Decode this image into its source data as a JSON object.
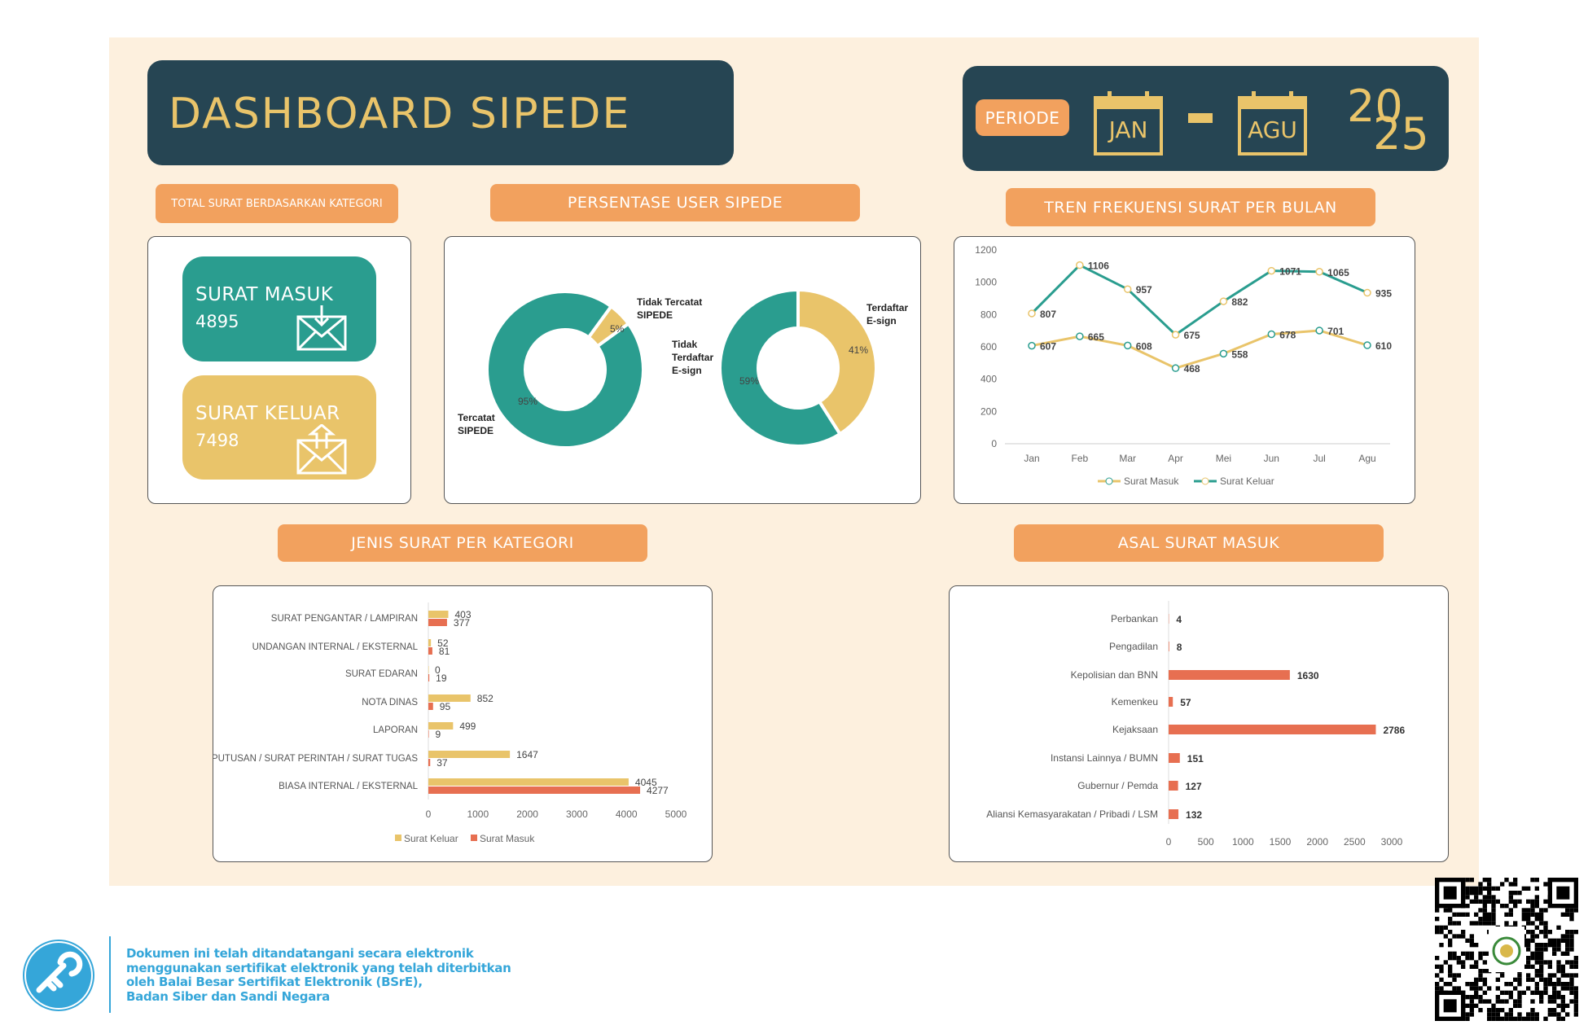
{
  "header": {
    "title": "DASHBOARD SIPEDE",
    "period_label": "PERIODE",
    "period_start": "JAN",
    "period_end": "AGU",
    "year_top": "20",
    "year_bottom": "25"
  },
  "sections": {
    "total": "TOTAL SURAT BERDASARKAN KATEGORI",
    "user": "PERSENTASE USER SIPEDE",
    "trend": "TREN FREKUENSI SURAT PER BULAN",
    "jenis": "JENIS SURAT PER KATEGORI",
    "asal": "ASAL SURAT MASUK"
  },
  "kpis": {
    "masuk": {
      "label": "SURAT MASUK",
      "value": "4895",
      "icon": "envelope-in-icon"
    },
    "keluar": {
      "label": "SURAT KELUAR",
      "value": "7498",
      "icon": "envelope-out-icon"
    }
  },
  "colors": {
    "dark": "#264553",
    "teal": "#2a9d8f",
    "gold": "#e9c46a",
    "orange": "#f2a15e",
    "red": "#e76f51",
    "cream": "#fdf0de"
  },
  "chart_data": [
    {
      "type": "pie",
      "donut": true,
      "slices": [
        {
          "label": "Tercatat SIPEDE",
          "value": 95,
          "display": "95%"
        },
        {
          "label": "Tidak Tercatat SIPEDE",
          "value": 5,
          "display": "5%"
        }
      ]
    },
    {
      "type": "pie",
      "donut": true,
      "slices": [
        {
          "label": "Tidak Terdaftar E-sign",
          "value": 59,
          "display": "59%"
        },
        {
          "label": "Terdaftar E-sign",
          "value": 41,
          "display": "41%"
        }
      ]
    },
    {
      "type": "line",
      "categories": [
        "Jan",
        "Feb",
        "Mar",
        "Apr",
        "Mei",
        "Jun",
        "Jul",
        "Agu"
      ],
      "ylim": [
        0,
        1200
      ],
      "yticks": [
        "0",
        "200",
        "400",
        "600",
        "800",
        "1000",
        "1200"
      ],
      "legend": "bottom",
      "series": [
        {
          "name": "Surat Masuk",
          "values": [
            607,
            665,
            608,
            468,
            558,
            678,
            701,
            610
          ]
        },
        {
          "name": "Surat Keluar",
          "values": [
            807,
            1106,
            957,
            675,
            882,
            1071,
            1065,
            935
          ]
        }
      ]
    },
    {
      "type": "bar",
      "orientation": "horizontal",
      "categories": [
        "SURAT PENGANTAR / LAMPIRAN",
        "UNDANGAN INTERNAL / EKSTERNAL",
        "SURAT EDARAN",
        "NOTA DINAS",
        "LAPORAN",
        "KEPUTUSAN / SURAT PERINTAH / SURAT TUGAS",
        "BIASA INTERNAL / EKSTERNAL"
      ],
      "xlim": [
        0,
        5000
      ],
      "xticks": [
        "0",
        "1000",
        "2000",
        "3000",
        "4000",
        "5000"
      ],
      "legend": "bottom",
      "series": [
        {
          "name": "Surat Keluar",
          "values": [
            403,
            52,
            0,
            852,
            499,
            1647,
            4045
          ]
        },
        {
          "name": "Surat Masuk",
          "values": [
            377,
            81,
            19,
            95,
            9,
            37,
            4277
          ]
        }
      ]
    },
    {
      "type": "bar",
      "orientation": "horizontal",
      "categories": [
        "Perbankan",
        "Pengadilan",
        "Kepolisian dan BNN",
        "Kemenkeu",
        "Kejaksaan",
        "Instansi Lainnya / BUMN",
        "Gubernur / Pemda",
        "Aliansi Kemasyarakatan / Pribadi / LSM"
      ],
      "xlim": [
        0,
        3000
      ],
      "xticks": [
        "0",
        "500",
        "1000",
        "1500",
        "2000",
        "2500",
        "3000"
      ],
      "values": [
        4,
        8,
        1630,
        57,
        2786,
        151,
        127,
        132
      ]
    }
  ],
  "footer": {
    "lines": [
      "Dokumen ini telah ditandatangani secara elektronik",
      "menggunakan sertifikat elektronik yang telah diterbitkan",
      "oleh Balai Besar Sertifikat Elektronik (BSrE),",
      "Badan Siber dan Sandi Negara"
    ],
    "logo": "bsre-logo",
    "qr": "qr-code"
  }
}
